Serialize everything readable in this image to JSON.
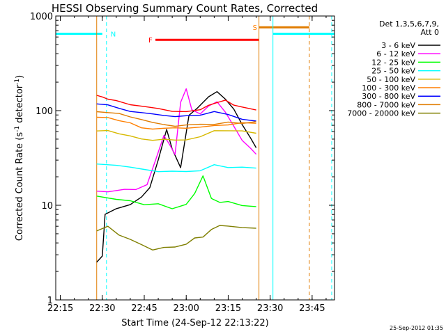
{
  "chart_data": {
    "type": "line",
    "title": "HESSI Observing Summary Count Rates, Corrected",
    "xlabel": "Start Time (24-Sep-12 22:13:22)",
    "ylabel": "Corrected Count Rate (s⁻¹ detector⁻¹)",
    "ylabel_main": "Corrected Count Rate (s",
    "ylabel_sup1": "-1",
    "ylabel_mid": " detector",
    "ylabel_sup2": "-1",
    "ylabel_end": ")",
    "footer": "25-Sep-2012 01:35",
    "y_scale": "log",
    "ylim": [
      1,
      1000
    ],
    "xlim": [
      "22:13:22",
      "23:53:00"
    ],
    "x_ticks": [
      "22:15",
      "22:30",
      "22:45",
      "23:00",
      "23:15",
      "23:30",
      "23:45"
    ],
    "y_ticks": [
      "1",
      "10",
      "100",
      "1000"
    ],
    "legend_header": [
      "Det 1,3,5,6,7,9,",
      "Att 0"
    ],
    "legend_position": "right",
    "series": [
      {
        "name": "3 - 6 keV",
        "color": "#000000",
        "x": [
          "22:28",
          "22:30",
          "22:31",
          "22:35",
          "22:40",
          "22:44",
          "22:47",
          "22:50",
          "22:53",
          "22:55",
          "22:58",
          "23:01",
          "23:04",
          "23:08",
          "23:11",
          "23:14",
          "23:17",
          "23:20",
          "23:23",
          "23:25"
        ],
        "y": [
          2.5,
          2.8,
          8,
          9,
          10,
          12,
          15,
          30,
          65,
          40,
          25,
          90,
          110,
          140,
          160,
          130,
          100,
          70,
          50,
          40
        ]
      },
      {
        "name": "6 - 12 keV",
        "color": "#ff00ff",
        "x": [
          "22:28",
          "22:32",
          "22:38",
          "22:42",
          "22:46",
          "22:49",
          "22:52",
          "22:54",
          "22:56",
          "22:58",
          "23:00",
          "23:02",
          "23:05",
          "23:08",
          "23:11",
          "23:14",
          "23:17",
          "23:20",
          "23:23",
          "23:25"
        ],
        "y": [
          14,
          14,
          15,
          15,
          17,
          30,
          55,
          45,
          35,
          120,
          170,
          100,
          90,
          110,
          120,
          95,
          70,
          50,
          40,
          35
        ]
      },
      {
        "name": "12 - 25 keV",
        "color": "#00ff00",
        "x": [
          "22:28",
          "22:35",
          "22:40",
          "22:45",
          "22:50",
          "22:55",
          "23:00",
          "23:03",
          "23:06",
          "23:09",
          "23:12",
          "23:15",
          "23:20",
          "23:25"
        ],
        "y": [
          13,
          12,
          11,
          10,
          10,
          9,
          10,
          13,
          20,
          12,
          11,
          11,
          10,
          10
        ]
      },
      {
        "name": "25 - 50 keV",
        "color": "#00ffff",
        "x": [
          "22:28",
          "22:35",
          "22:40",
          "22:45",
          "22:50",
          "22:55",
          "23:00",
          "23:05",
          "23:10",
          "23:15",
          "23:20",
          "23:25"
        ],
        "y": [
          27,
          26,
          25,
          24,
          23,
          23,
          23,
          24,
          27,
          26,
          25,
          24
        ]
      },
      {
        "name": "50 - 100 keV",
        "color": "#d7b900",
        "x": [
          "22:28",
          "22:32",
          "22:36",
          "22:40",
          "22:44",
          "22:48",
          "22:52",
          "22:56",
          "23:00",
          "23:05",
          "23:10",
          "23:15",
          "23:20",
          "23:25"
        ],
        "y": [
          63,
          62,
          58,
          54,
          50,
          48,
          48,
          48,
          49,
          52,
          60,
          62,
          62,
          60
        ]
      },
      {
        "name": "100 - 300 keV",
        "color": "#ff7f00",
        "x": [
          "22:28",
          "22:32",
          "22:36",
          "22:40",
          "22:44",
          "22:48",
          "22:52",
          "22:56",
          "23:00",
          "23:05",
          "23:10",
          "23:15",
          "23:20",
          "23:25"
        ],
        "y": [
          85,
          84,
          78,
          72,
          68,
          66,
          66,
          66,
          66,
          67,
          70,
          72,
          72,
          72
        ]
      },
      {
        "name": "300 - 800 keV",
        "color": "#0000ff",
        "x": [
          "22:28",
          "22:32",
          "22:36",
          "22:40",
          "22:44",
          "22:48",
          "22:52",
          "22:56",
          "23:00",
          "23:05",
          "23:10",
          "23:15",
          "23:20",
          "23:25"
        ],
        "y": [
          118,
          116,
          110,
          102,
          96,
          92,
          88,
          86,
          86,
          88,
          95,
          88,
          82,
          78
        ]
      },
      {
        "name": "800 - 7000 keV",
        "color": "#e07c00",
        "x": [
          "22:28",
          "22:32",
          "22:36",
          "22:40",
          "22:44",
          "22:48",
          "22:52",
          "22:56",
          "23:00",
          "23:05",
          "23:10",
          "23:15",
          "23:20",
          "23:25"
        ],
        "y": [
          97,
          95,
          90,
          84,
          78,
          74,
          72,
          71,
          71,
          72,
          74,
          76,
          76,
          75
        ]
      },
      {
        "name": "7000 - 20000 keV",
        "color": "#7f7f00",
        "x": [
          "22:28",
          "22:32",
          "22:36",
          "22:40",
          "22:44",
          "22:48",
          "22:52",
          "22:56",
          "23:00",
          "23:03",
          "23:06",
          "23:09",
          "23:12",
          "23:15",
          "23:20",
          "23:25"
        ],
        "y": [
          5.5,
          6,
          5,
          4.5,
          4,
          3.5,
          3.5,
          3.5,
          3.8,
          4.5,
          4.5,
          5.5,
          6,
          6,
          6,
          5.8
        ]
      },
      {
        "name": "",
        "color": "#ff0000",
        "x": [
          "22:28",
          "22:30",
          "22:32",
          "22:35",
          "22:40",
          "22:45",
          "22:50",
          "22:55",
          "23:00",
          "23:05",
          "23:08",
          "23:11",
          "23:14",
          "23:17",
          "23:20",
          "23:25"
        ],
        "y": [
          140,
          138,
          130,
          125,
          115,
          108,
          104,
          100,
          100,
          105,
          115,
          125,
          130,
          115,
          105,
          100
        ]
      }
    ],
    "annotations": {
      "night_intervals": [
        [
          "22:13:22",
          "22:30:00"
        ],
        [
          "23:31:00",
          "23:53:00"
        ]
      ],
      "saa_intervals": [
        [
          "23:26:00",
          "23:44:00"
        ]
      ],
      "flare_interval": [
        "22:49:00",
        "23:26:00"
      ],
      "labels": [
        {
          "text": "N",
          "color": "#00ffff"
        },
        {
          "text": "F",
          "color": "#ff0000"
        },
        {
          "text": "S",
          "color": "#ff7f00"
        }
      ],
      "orange_verticals": [
        "22:28:00",
        "23:26:00"
      ],
      "cyan_dashed_verticals": [
        "22:31:30",
        "23:52:00"
      ],
      "cyan_solid_verticals": [
        "23:31:00"
      ],
      "orange_dashed_verticals": [
        "23:44:00"
      ]
    }
  }
}
